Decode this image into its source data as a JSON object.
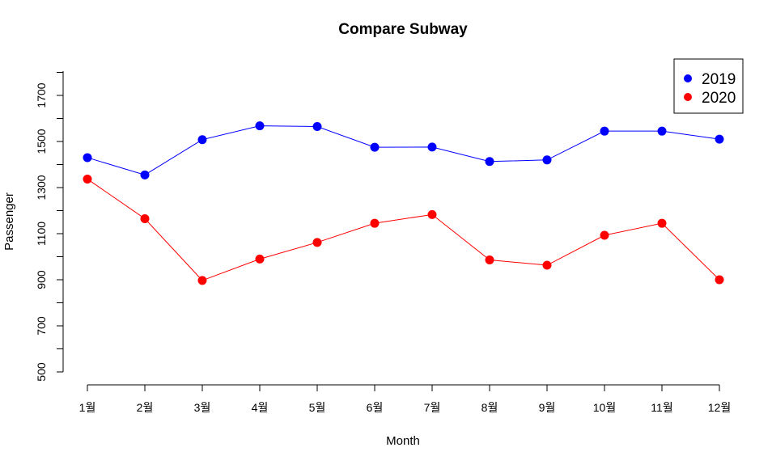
{
  "chart_data": {
    "type": "line",
    "title": "Compare Subway",
    "xlabel": "Month",
    "ylabel": "Passenger",
    "categories": [
      "1월",
      "2월",
      "3월",
      "4월",
      "5월",
      "6월",
      "7월",
      "8월",
      "9월",
      "10월",
      "11월",
      "12월"
    ],
    "ylim": [
      500,
      1800
    ],
    "yticks": [
      500,
      700,
      900,
      1100,
      1300,
      1500,
      1700
    ],
    "yminor": [
      600,
      800,
      1000,
      1200,
      1400,
      1600,
      1800
    ],
    "grid": false,
    "legend_position": "top-right",
    "series": [
      {
        "name": "2019",
        "color": "#0000ff",
        "values": [
          1430,
          1355,
          1508,
          1568,
          1565,
          1475,
          1476,
          1413,
          1420,
          1545,
          1545,
          1510
        ]
      },
      {
        "name": "2020",
        "color": "#ff0000",
        "values": [
          1337,
          1165,
          897,
          990,
          1062,
          1145,
          1183,
          986,
          963,
          1093,
          1145,
          900
        ]
      }
    ]
  }
}
